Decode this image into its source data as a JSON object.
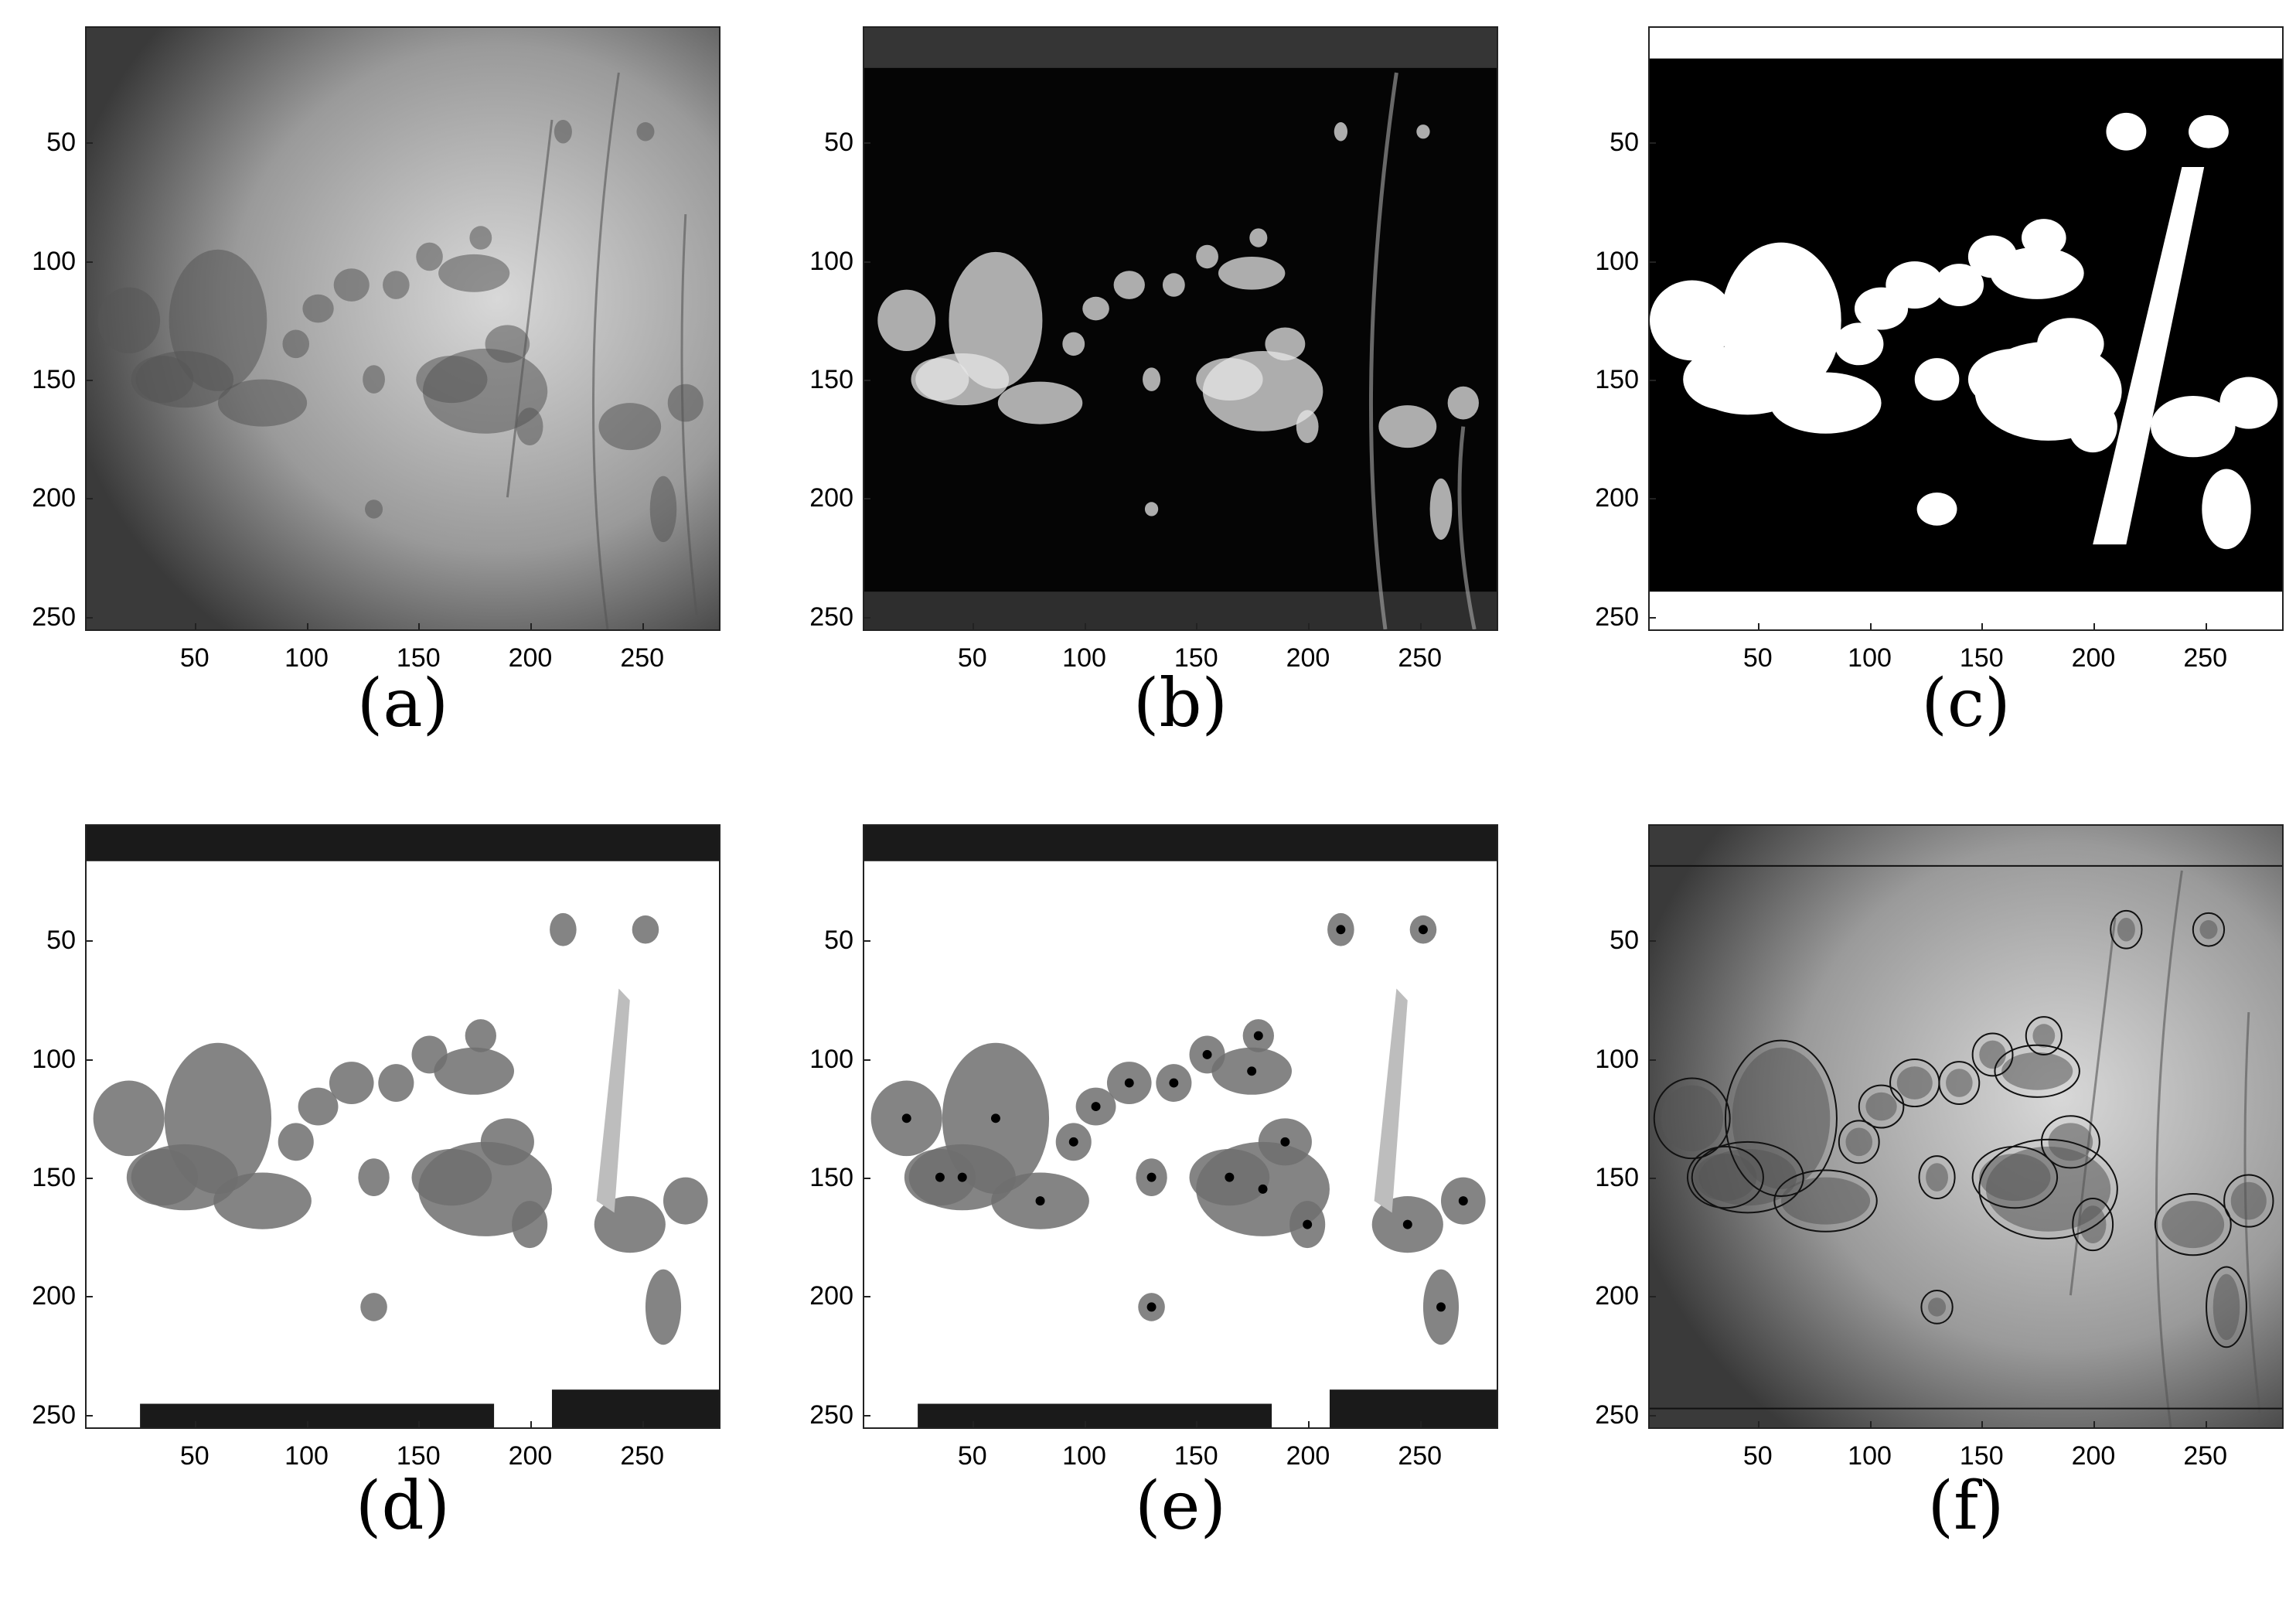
{
  "figure": {
    "panels": [
      {
        "id": "a",
        "caption": "(a)",
        "content": "grayscale retinal image",
        "x_ticks": [
          "50",
          "100",
          "150",
          "200",
          "250"
        ],
        "y_ticks": [
          "50",
          "100",
          "150",
          "200",
          "250"
        ]
      },
      {
        "id": "b",
        "caption": "(b)",
        "content": "enhanced lesion response map",
        "x_ticks": [
          "50",
          "100",
          "150",
          "200",
          "250"
        ],
        "y_ticks": [
          "50",
          "100",
          "150",
          "200",
          "250"
        ]
      },
      {
        "id": "c",
        "caption": "(c)",
        "content": "binary threshold mask",
        "x_ticks": [
          "50",
          "100",
          "150",
          "200",
          "250"
        ],
        "y_ticks": [
          "50",
          "100",
          "150",
          "200",
          "250"
        ]
      },
      {
        "id": "d",
        "caption": "(d)",
        "content": "masked candidate regions",
        "x_ticks": [
          "50",
          "100",
          "150",
          "200",
          "250"
        ],
        "y_ticks": [
          "50",
          "100",
          "150",
          "200",
          "250"
        ]
      },
      {
        "id": "e",
        "caption": "(e)",
        "content": "candidate regions with seed points",
        "x_ticks": [
          "50",
          "100",
          "150",
          "200",
          "250"
        ],
        "y_ticks": [
          "50",
          "100",
          "150",
          "200",
          "250"
        ]
      },
      {
        "id": "f",
        "caption": "(f)",
        "content": "segmented region contours overlaid on image",
        "x_ticks": [
          "50",
          "100",
          "150",
          "200",
          "250"
        ],
        "y_ticks": [
          "50",
          "100",
          "150",
          "200",
          "250"
        ]
      }
    ],
    "axis_range": {
      "x": [
        1,
        285
      ],
      "y": [
        1,
        256
      ]
    },
    "colors": {
      "background": "#ffffff",
      "axes": "#222222",
      "dark": "#0a0a0a",
      "bright": "#f5f5f5",
      "gray": "#8a8a8a"
    }
  }
}
